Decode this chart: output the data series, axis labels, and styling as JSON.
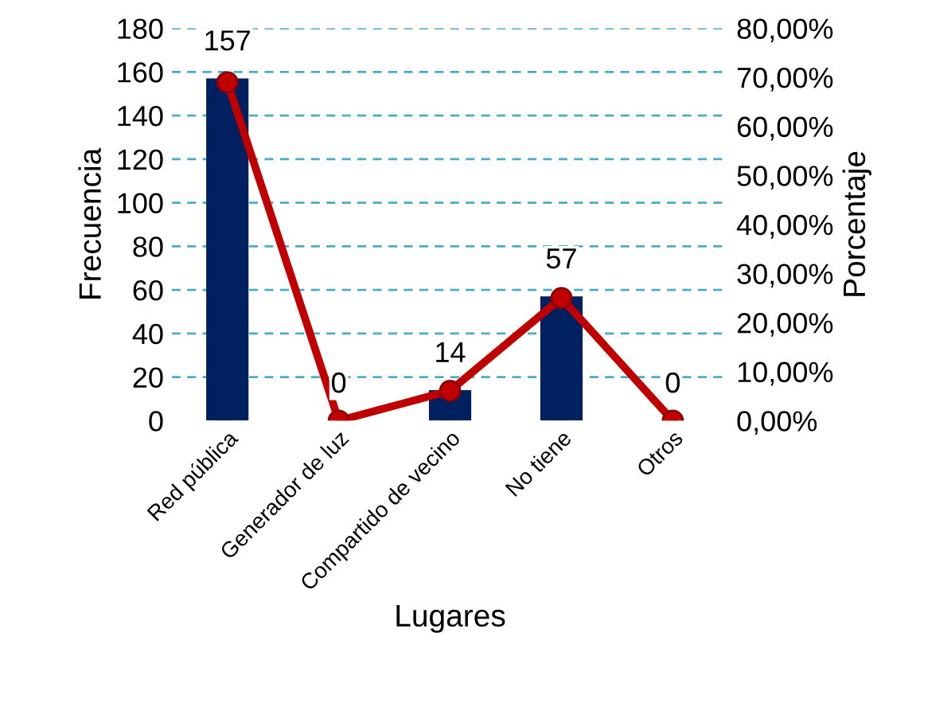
{
  "chart_data": {
    "type": "bar",
    "xlabel": "Lugares",
    "ylabel": "Frecuencia",
    "y2label": "Porcentaje",
    "categories": [
      "Red pública",
      "Generador de luz",
      "Compartido de vecino",
      "No tiene",
      "Otros"
    ],
    "series": [
      {
        "color": "#002060",
        "values": [
          157,
          0,
          14,
          57,
          0
        ],
        "value_labels": [
          "157",
          "0",
          "14",
          "57",
          "0"
        ]
      },
      {
        "type": "line",
        "axis": "y2",
        "color": "#c00000",
        "values": [
          69,
          0,
          6.1,
          25,
          0
        ],
        "marker": "circle",
        "line_style": "solid"
      }
    ],
    "ylim": [
      0,
      180
    ],
    "yticks": [
      0,
      20,
      40,
      60,
      80,
      100,
      120,
      140,
      160,
      180
    ],
    "y2lim": [
      0,
      80
    ],
    "y2ticks": [
      {
        "value": 0,
        "label": "0,00%"
      },
      {
        "value": 10,
        "label": "10,00%"
      },
      {
        "value": 20,
        "label": "20,00%"
      },
      {
        "value": 30,
        "label": "30,00%"
      },
      {
        "value": 40,
        "label": "40,00%"
      },
      {
        "value": 50,
        "label": "50,00%"
      },
      {
        "value": 60,
        "label": "60,00%"
      },
      {
        "value": 70,
        "label": "70,00%"
      },
      {
        "value": 80,
        "label": "80,00%"
      }
    ],
    "grid": "y"
  }
}
